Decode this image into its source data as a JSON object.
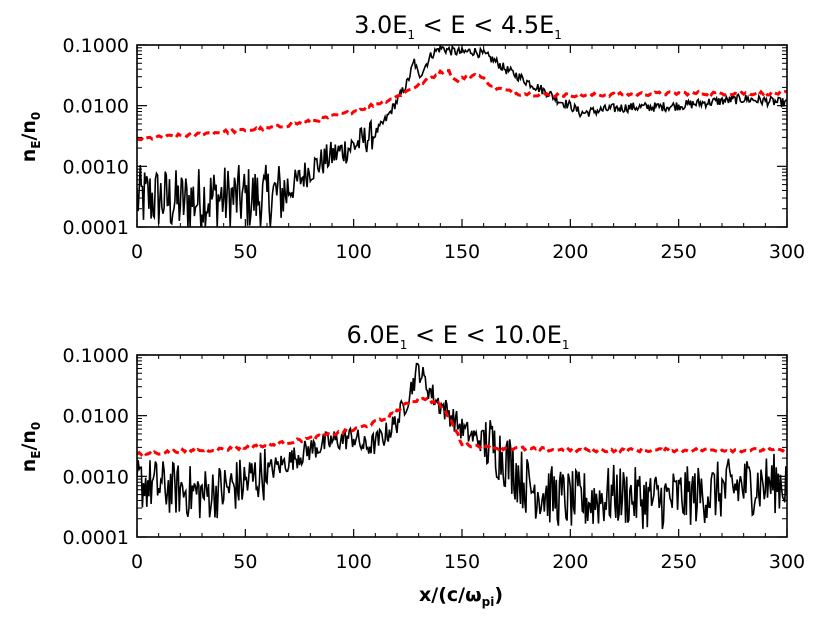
{
  "chart_data": [
    {
      "type": "line",
      "title": {
        "main": "3.0E",
        "sub1": "1",
        "mid": " < E < 4.5E",
        "sub2": "1"
      },
      "ylabel": {
        "a": "n",
        "a_sub": "E",
        "b": "/n",
        "b_sub": "0"
      },
      "xlabel": null,
      "xlim": [
        0,
        300
      ],
      "ylim": [
        0.0001,
        0.1
      ],
      "yscale": "log",
      "xticks": [
        "0",
        "50",
        "100",
        "150",
        "200",
        "250",
        "300"
      ],
      "yticks": [
        "0.0001",
        "0.0010",
        "0.0100",
        "0.1000"
      ],
      "series": [
        {
          "name": "black-solid",
          "color": "#000000",
          "style": "solid",
          "points": [
            [
              0,
              0.0003
            ],
            [
              10,
              0.0003
            ],
            [
              20,
              0.00025
            ],
            [
              30,
              0.0003
            ],
            [
              40,
              0.0003
            ],
            [
              50,
              0.0003
            ],
            [
              60,
              0.0003
            ],
            [
              70,
              0.0004
            ],
            [
              80,
              0.0009
            ],
            [
              90,
              0.0015
            ],
            [
              100,
              0.0022
            ],
            [
              110,
              0.0035
            ],
            [
              115,
              0.006
            ],
            [
              120,
              0.012
            ],
            [
              125,
              0.025
            ],
            [
              128,
              0.055
            ],
            [
              130,
              0.03
            ],
            [
              133,
              0.045
            ],
            [
              136,
              0.07
            ],
            [
              140,
              0.09
            ],
            [
              145,
              0.08
            ],
            [
              150,
              0.075
            ],
            [
              155,
              0.08
            ],
            [
              160,
              0.07
            ],
            [
              165,
              0.055
            ],
            [
              170,
              0.04
            ],
            [
              175,
              0.032
            ],
            [
              180,
              0.025
            ],
            [
              185,
              0.02
            ],
            [
              190,
              0.016
            ],
            [
              195,
              0.012
            ],
            [
              200,
              0.01
            ],
            [
              205,
              0.0075
            ],
            [
              210,
              0.008
            ],
            [
              220,
              0.009
            ],
            [
              230,
              0.0095
            ],
            [
              240,
              0.0095
            ],
            [
              250,
              0.01
            ],
            [
              260,
              0.011
            ],
            [
              270,
              0.012
            ],
            [
              280,
              0.013
            ],
            [
              290,
              0.012
            ],
            [
              300,
              0.011
            ]
          ],
          "noise": [
            [
              0,
              70,
              0.55
            ],
            [
              70,
              110,
              0.25
            ],
            [
              110,
              300,
              0.08
            ]
          ]
        },
        {
          "name": "red-dashed",
          "color": "#ff0000",
          "style": "dashed",
          "points": [
            [
              0,
              0.0028
            ],
            [
              20,
              0.0032
            ],
            [
              40,
              0.0037
            ],
            [
              60,
              0.0042
            ],
            [
              80,
              0.0055
            ],
            [
              100,
              0.008
            ],
            [
              120,
              0.014
            ],
            [
              135,
              0.028
            ],
            [
              143,
              0.04
            ],
            [
              147,
              0.026
            ],
            [
              152,
              0.03
            ],
            [
              157,
              0.033
            ],
            [
              165,
              0.02
            ],
            [
              175,
              0.016
            ],
            [
              190,
              0.015
            ],
            [
              210,
              0.015
            ],
            [
              250,
              0.016
            ],
            [
              300,
              0.016
            ]
          ],
          "noise": [
            [
              0,
              300,
              0.03
            ]
          ]
        }
      ]
    },
    {
      "type": "line",
      "title": {
        "main": "6.0E",
        "sub1": "1",
        "mid": " < E < 10.0E",
        "sub2": "1"
      },
      "ylabel": {
        "a": "n",
        "a_sub": "E",
        "b": "/n",
        "b_sub": "0"
      },
      "xlabel": {
        "a": "x/(c/ω",
        "a_sub": "pi",
        "b": ")"
      },
      "xlim": [
        0,
        300
      ],
      "ylim": [
        0.0001,
        0.1
      ],
      "yscale": "log",
      "xticks": [
        "0",
        "50",
        "100",
        "150",
        "200",
        "250",
        "300"
      ],
      "yticks": [
        "0.0001",
        "0.0010",
        "0.0100",
        "0.1000"
      ],
      "series": [
        {
          "name": "black-solid",
          "color": "#000000",
          "style": "solid",
          "points": [
            [
              0,
              0.0008
            ],
            [
              20,
              0.0006
            ],
            [
              30,
              0.0005
            ],
            [
              40,
              0.0006
            ],
            [
              50,
              0.0008
            ],
            [
              60,
              0.0012
            ],
            [
              70,
              0.0018
            ],
            [
              80,
              0.0028
            ],
            [
              90,
              0.0038
            ],
            [
              100,
              0.0045
            ],
            [
              105,
              0.003
            ],
            [
              110,
              0.0035
            ],
            [
              115,
              0.005
            ],
            [
              120,
              0.008
            ],
            [
              125,
              0.02
            ],
            [
              128,
              0.04
            ],
            [
              130,
              0.06
            ],
            [
              133,
              0.035
            ],
            [
              138,
              0.018
            ],
            [
              145,
              0.01
            ],
            [
              150,
              0.006
            ],
            [
              155,
              0.0045
            ],
            [
              160,
              0.0038
            ],
            [
              165,
              0.003
            ],
            [
              170,
              0.002
            ],
            [
              175,
              0.0012
            ],
            [
              180,
              0.0007
            ],
            [
              190,
              0.0005
            ],
            [
              200,
              0.0004
            ],
            [
              210,
              0.0004
            ],
            [
              220,
              0.0005
            ],
            [
              240,
              0.0004
            ],
            [
              260,
              0.0005
            ],
            [
              280,
              0.0007
            ],
            [
              300,
              0.0008
            ]
          ],
          "noise": [
            [
              0,
              60,
              0.45
            ],
            [
              60,
              160,
              0.2
            ],
            [
              160,
              300,
              0.5
            ]
          ]
        },
        {
          "name": "red-dashed",
          "color": "#ff0000",
          "style": "dashed",
          "points": [
            [
              0,
              0.0023
            ],
            [
              20,
              0.0026
            ],
            [
              40,
              0.0028
            ],
            [
              60,
              0.0032
            ],
            [
              80,
              0.0042
            ],
            [
              100,
              0.0058
            ],
            [
              115,
              0.009
            ],
            [
              125,
              0.016
            ],
            [
              132,
              0.02
            ],
            [
              140,
              0.015
            ],
            [
              145,
              0.008
            ],
            [
              150,
              0.0035
            ],
            [
              160,
              0.003
            ],
            [
              200,
              0.0027
            ],
            [
              250,
              0.0027
            ],
            [
              300,
              0.0027
            ]
          ],
          "noise": [
            [
              0,
              300,
              0.03
            ]
          ]
        }
      ]
    }
  ]
}
